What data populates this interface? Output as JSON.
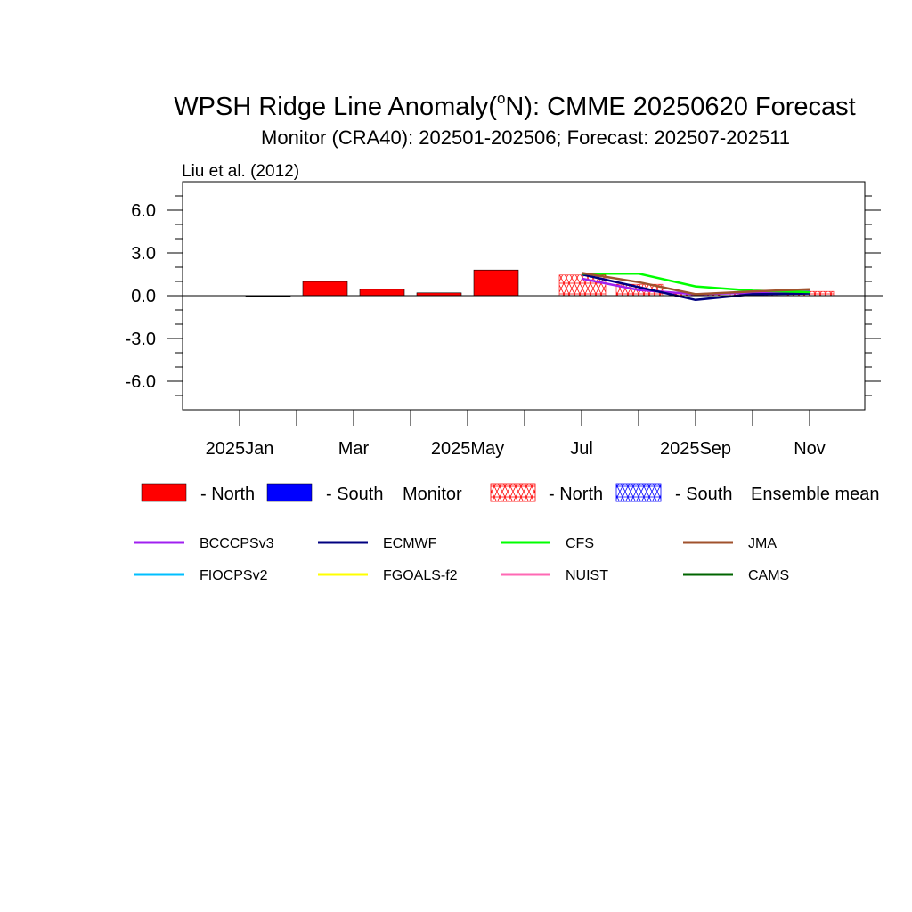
{
  "chart_data": {
    "type": "bar",
    "title_main": "WPSH Ridge Line Anomaly(",
    "title_sup": "o",
    "title_rest": "N): CMME 20250620 Forecast",
    "subtitle": "Monitor (CRA40): 202501-202506; Forecast: 202507-202511",
    "reference": "Liu et al. (2012)",
    "ylim": [
      -8,
      8
    ],
    "y_ticks": [
      6,
      3,
      0,
      -3,
      -6
    ],
    "y_tick_labels": [
      "6.0",
      "3.0",
      "0.0",
      "-3.0",
      "-6.0"
    ],
    "x_months": [
      "2025-01",
      "2025-02",
      "2025-03",
      "2025-04",
      "2025-05",
      "2025-06",
      "2025-07",
      "2025-08",
      "2025-09",
      "2025-10",
      "2025-11"
    ],
    "x_tick_labels": [
      {
        "label": "2025Jan",
        "month_index": 0
      },
      {
        "label": "Mar",
        "month_index": 2
      },
      {
        "label": "2025May",
        "month_index": 4
      },
      {
        "label": "Jul",
        "month_index": 6
      },
      {
        "label": "2025Sep",
        "month_index": 8
      },
      {
        "label": "Nov",
        "month_index": 10
      }
    ],
    "monitor_bars": [
      {
        "month": "2025-01",
        "value": 0.0
      },
      {
        "month": "2025-02",
        "value": 1.0
      },
      {
        "month": "2025-03",
        "value": 0.45
      },
      {
        "month": "2025-04",
        "value": 0.2
      },
      {
        "month": "2025-05",
        "value": 1.8
      }
    ],
    "ensemble_bars": [
      {
        "month": "2025-07",
        "value": 1.45
      },
      {
        "month": "2025-08",
        "value": 0.8
      },
      {
        "month": "2025-09",
        "value": 0.15
      },
      {
        "month": "2025-10",
        "value": 0.25
      },
      {
        "month": "2025-11",
        "value": 0.3
      }
    ],
    "series": [
      {
        "name": "BCCCPSv3",
        "color": "#a020f0",
        "months": [
          "2025-07",
          "2025-08",
          "2025-09",
          "2025-10",
          "2025-11"
        ],
        "values": [
          1.2,
          0.4,
          0.1,
          0.2,
          0.3
        ]
      },
      {
        "name": "ECMWF",
        "color": "#000080",
        "months": [
          "2025-07",
          "2025-08",
          "2025-09",
          "2025-10",
          "2025-11"
        ],
        "values": [
          1.5,
          0.6,
          -0.3,
          0.1,
          0.15
        ]
      },
      {
        "name": "CFS",
        "color": "#00ff00",
        "months": [
          "2025-07",
          "2025-08",
          "2025-09",
          "2025-10",
          "2025-11"
        ],
        "values": [
          1.55,
          1.55,
          0.65,
          0.35,
          0.25
        ]
      },
      {
        "name": "JMA",
        "color": "#a0522d",
        "months": [
          "2025-07",
          "2025-08",
          "2025-09",
          "2025-10",
          "2025-11"
        ],
        "values": [
          1.6,
          0.95,
          0.1,
          0.3,
          0.45
        ]
      }
    ],
    "legend": {
      "monitor_north_label": "- North",
      "monitor_south_label": "- South",
      "monitor_label": "Monitor",
      "ens_north_label": "- North",
      "ens_south_label": "- South",
      "ens_label": "Ensemble mean",
      "north_color": "#ff0000",
      "south_color": "#0000ff",
      "models": [
        {
          "name": "BCCCPSv3",
          "color": "#a020f0"
        },
        {
          "name": "ECMWF",
          "color": "#000080"
        },
        {
          "name": "CFS",
          "color": "#00ff00"
        },
        {
          "name": "JMA",
          "color": "#a0522d"
        },
        {
          "name": "FIOCPSv2",
          "color": "#00bfff"
        },
        {
          "name": "FGOALS-f2",
          "color": "#ffff00"
        },
        {
          "name": "NUIST",
          "color": "#ff69b4"
        },
        {
          "name": "CAMS",
          "color": "#006400"
        }
      ]
    }
  }
}
